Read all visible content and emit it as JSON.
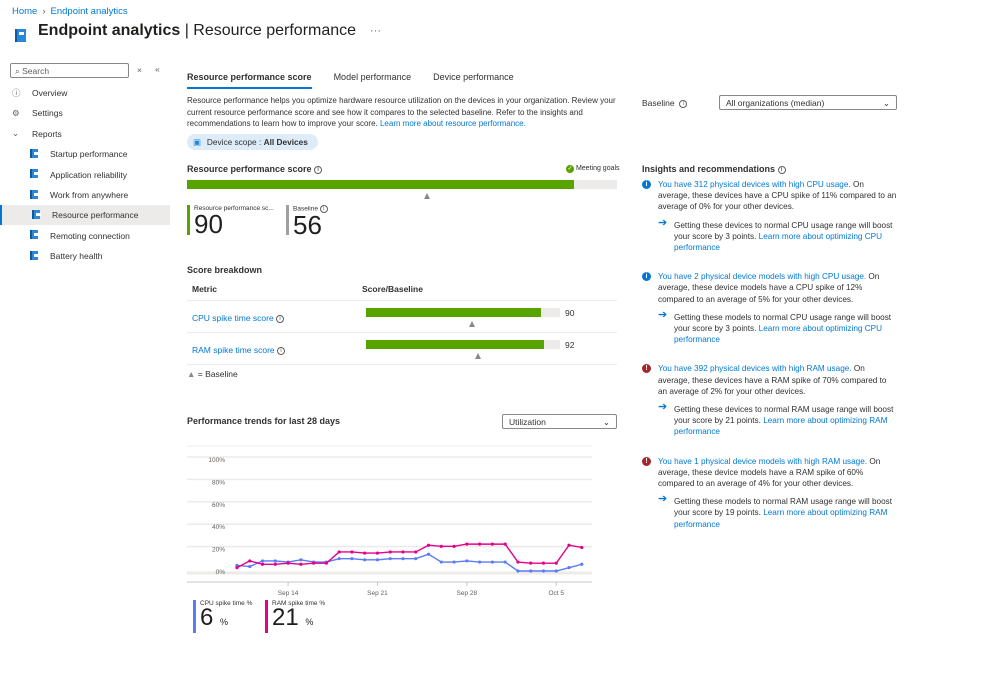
{
  "breadcrumb": {
    "home": "Home",
    "section": "Endpoint analytics"
  },
  "header": {
    "title_bold": "Endpoint analytics",
    "title_rest": " | Resource performance",
    "more": "···"
  },
  "sidebar": {
    "search_placeholder": "Search",
    "items": [
      {
        "label": "Overview",
        "icon": "info-icon"
      },
      {
        "label": "Settings",
        "icon": "gear-icon"
      },
      {
        "label": "Reports",
        "icon": "chevron-down-icon"
      },
      {
        "label": "Startup performance",
        "icon": "book-icon"
      },
      {
        "label": "Application reliability",
        "icon": "book-icon"
      },
      {
        "label": "Work from anywhere",
        "icon": "book-icon"
      },
      {
        "label": "Resource performance",
        "icon": "book-icon",
        "selected": true
      },
      {
        "label": "Remoting connection",
        "icon": "book-icon"
      },
      {
        "label": "Battery health",
        "icon": "book-icon"
      }
    ]
  },
  "tabs": [
    "Resource performance score",
    "Model performance",
    "Device performance"
  ],
  "description": {
    "text": "Resource performance helps you optimize hardware resource utilization on the devices in your organization. Review your current resource performance score and see how it compares to the selected baseline. Refer to the insights and recommendations to learn how to improve your score. ",
    "link": "Learn more about resource performance."
  },
  "scope": {
    "label": "Device scope : ",
    "value": "All Devices"
  },
  "score": {
    "title": "Resource performance score",
    "status": "Meeting goals",
    "value": 90,
    "baseline": 56,
    "score_label": "Resource performance sc...",
    "baseline_label": "Baseline",
    "colors": {
      "good": "#57a300",
      "baseline": "#a19f9d"
    }
  },
  "breakdown": {
    "title": "Score breakdown",
    "col_metric": "Metric",
    "col_score": "Score/Baseline",
    "legend": "= Baseline",
    "rows": [
      {
        "metric": "CPU spike time score",
        "score": 90,
        "baseline": 55
      },
      {
        "metric": "RAM spike time score",
        "score": 92,
        "baseline": 58
      }
    ]
  },
  "baseline_select": {
    "label": "Baseline",
    "value": "All organizations (median)"
  },
  "trends": {
    "title": "Performance trends for last 28 days",
    "dropdown": "Utilization"
  },
  "chart_data": {
    "type": "line",
    "x": [
      "Sep 10",
      "Sep 11",
      "Sep 12",
      "Sep 13",
      "Sep 14",
      "Sep 15",
      "Sep 16",
      "Sep 17",
      "Sep 18",
      "Sep 19",
      "Sep 20",
      "Sep 21",
      "Sep 22",
      "Sep 23",
      "Sep 24",
      "Sep 25",
      "Sep 26",
      "Sep 27",
      "Sep 28",
      "Sep 29",
      "Sep 30",
      "Oct 1",
      "Oct 2",
      "Oct 3",
      "Oct 4",
      "Oct 5",
      "Oct 6",
      "Oct 7"
    ],
    "xticks": [
      {
        "label": "Sep 14",
        "index": 4
      },
      {
        "label": "Sep 21",
        "index": 11
      },
      {
        "label": "Sep 28",
        "index": 18
      },
      {
        "label": "Oct 5",
        "index": 25
      }
    ],
    "yticks": [
      "0%",
      "20%",
      "40%",
      "60%",
      "80%",
      "100%"
    ],
    "ylim": [
      0,
      100
    ],
    "series": [
      {
        "name": "CPU spike time %",
        "color": "#5b7cf7",
        "current": "6",
        "values": [
          5,
          4,
          9,
          9,
          8,
          10,
          8,
          8,
          11,
          11,
          10,
          10,
          11,
          11,
          11,
          15,
          8,
          8,
          9,
          8,
          8,
          8,
          0,
          0,
          0,
          0,
          3,
          6
        ]
      },
      {
        "name": "RAM spike time %",
        "color": "#e3008c",
        "current": "21",
        "values": [
          3,
          9,
          6,
          6,
          7,
          6,
          7,
          7,
          17,
          17,
          16,
          16,
          17,
          17,
          17,
          23,
          22,
          22,
          24,
          24,
          24,
          24,
          8,
          7,
          7,
          7,
          23,
          21
        ]
      }
    ],
    "unit": "%"
  },
  "insights": {
    "title": "Insights and recommendations",
    "items": [
      {
        "type": "info",
        "link": "You have 312 physical devices with high CPU usage.",
        "text": " On average, these devices have a CPU spike of 11% compared to an average of 0% for your other devices.",
        "rec": "Getting these devices to normal CPU usage range will boost your score by 3 points. ",
        "rec_link": "Learn more about optimizing CPU performance"
      },
      {
        "type": "info",
        "link": "You have 2 physical device models with high CPU usage.",
        "text": " On average, these device models have a CPU spike of 12% compared to an average of 5% for your other devices.",
        "rec": "Getting these models to normal CPU usage range will boost your score by 3 points. ",
        "rec_link": "Learn more about optimizing CPU performance"
      },
      {
        "type": "error",
        "link": "You have 392 physical devices with high RAM usage.",
        "text": " On average, these devices have a RAM spike of 70% compared to an average of 2% for your other devices.",
        "rec": "Getting these devices to normal RAM usage range will boost your score by 21 points. ",
        "rec_link": "Learn more about optimizing RAM performance"
      },
      {
        "type": "error",
        "link": "You have 1 physical device models with high RAM usage.",
        "text": " On average, these device models have a RAM spike of 60% compared to an average of 4% for your other devices.",
        "rec": "Getting these models to normal RAM usage range will boost your score by 19 points. ",
        "rec_link": "Learn more about optimizing RAM performance"
      }
    ]
  }
}
